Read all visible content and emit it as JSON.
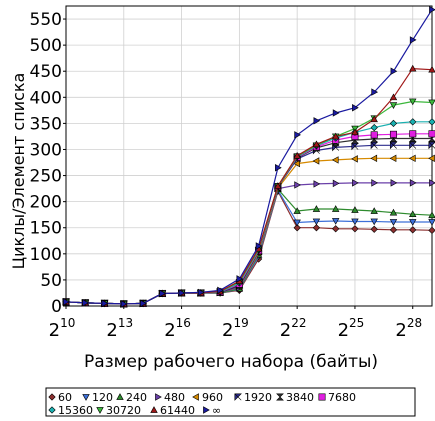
{
  "chart_data": {
    "type": "line",
    "xlabel": "Размер рабочего набора (байты)",
    "ylabel": "Циклы/Элемент списка",
    "x_log2": [
      10,
      11,
      12,
      13,
      14,
      15,
      16,
      17,
      18,
      19,
      20,
      21,
      22,
      23,
      24,
      25,
      26,
      27,
      28,
      29
    ],
    "xlim_log2": [
      10,
      29
    ],
    "ylim": [
      0,
      575
    ],
    "x_ticks": [
      {
        "pow": 10,
        "base": "2",
        "exp": "10"
      },
      {
        "pow": 13,
        "base": "2",
        "exp": "13"
      },
      {
        "pow": 16,
        "base": "2",
        "exp": "16"
      },
      {
        "pow": 19,
        "base": "2",
        "exp": "19"
      },
      {
        "pow": 22,
        "base": "2",
        "exp": "22"
      },
      {
        "pow": 25,
        "base": "2",
        "exp": "25"
      },
      {
        "pow": 28,
        "base": "2",
        "exp": "28"
      }
    ],
    "y_ticks": [
      0,
      50,
      100,
      150,
      200,
      250,
      300,
      350,
      400,
      450,
      500,
      550
    ],
    "grid": true,
    "legend_placement": "bottom",
    "series": [
      {
        "name": "60",
        "color": "#8b2f2f",
        "marker": "diamond",
        "values": [
          8,
          6,
          5,
          4,
          5,
          24,
          25,
          25,
          25,
          30,
          90,
          220,
          150,
          150,
          148,
          148,
          147,
          146,
          146,
          145
        ]
      },
      {
        "name": "120",
        "color": "#3c6fd8",
        "marker": "tri-down",
        "values": [
          8,
          6,
          5,
          4,
          5,
          24,
          25,
          25,
          25,
          32,
          95,
          222,
          160,
          162,
          163,
          162,
          162,
          161,
          161,
          161
        ]
      },
      {
        "name": "240",
        "color": "#2e8b2e",
        "marker": "tri-up",
        "values": [
          8,
          6,
          5,
          4,
          5,
          24,
          25,
          25,
          25,
          33,
          98,
          224,
          182,
          186,
          186,
          184,
          182,
          179,
          176,
          174
        ]
      },
      {
        "name": "480",
        "color": "#6a3fa8",
        "marker": "tri-right",
        "values": [
          8,
          6,
          5,
          4,
          5,
          24,
          25,
          25,
          26,
          35,
          100,
          225,
          232,
          234,
          235,
          236,
          236,
          236,
          236,
          236
        ]
      },
      {
        "name": "960",
        "color": "#d68a00",
        "marker": "tri-left",
        "values": [
          8,
          6,
          5,
          4,
          5,
          24,
          25,
          25,
          26,
          37,
          102,
          226,
          273,
          278,
          280,
          282,
          283,
          283,
          283,
          283
        ]
      },
      {
        "name": "1920",
        "color": "#2c2c8c",
        "marker": "bowtie-h",
        "values": [
          8,
          6,
          5,
          4,
          5,
          24,
          25,
          25,
          26,
          38,
          104,
          228,
          282,
          298,
          304,
          306,
          308,
          308,
          308,
          308
        ]
      },
      {
        "name": "3840",
        "color": "#303030",
        "marker": "bowtie-v",
        "values": [
          8,
          6,
          5,
          4,
          5,
          24,
          25,
          25,
          27,
          40,
          105,
          228,
          284,
          303,
          313,
          318,
          320,
          321,
          321,
          321
        ]
      },
      {
        "name": "7680",
        "color": "#e01ee0",
        "marker": "square",
        "values": [
          8,
          6,
          5,
          4,
          5,
          24,
          25,
          25,
          27,
          42,
          106,
          229,
          285,
          305,
          318,
          325,
          328,
          329,
          330,
          330
        ]
      },
      {
        "name": "15360",
        "color": "#1ab0b0",
        "marker": "diamond",
        "values": [
          8,
          6,
          5,
          4,
          5,
          24,
          25,
          25,
          27,
          44,
          107,
          229,
          286,
          307,
          322,
          333,
          342,
          350,
          353,
          353
        ]
      },
      {
        "name": "30720",
        "color": "#3cb83c",
        "marker": "tri-down",
        "values": [
          8,
          6,
          5,
          4,
          5,
          24,
          25,
          25,
          28,
          46,
          108,
          230,
          287,
          308,
          325,
          340,
          360,
          385,
          392,
          390
        ]
      },
      {
        "name": "61440",
        "color": "#a01818",
        "marker": "tri-up",
        "values": [
          8,
          6,
          5,
          4,
          5,
          24,
          25,
          25,
          28,
          48,
          110,
          230,
          288,
          310,
          325,
          333,
          358,
          400,
          455,
          453
        ]
      },
      {
        "name": "∞",
        "color": "#1a1aa0",
        "marker": "tri-right",
        "values": [
          8,
          6,
          5,
          4,
          5,
          24,
          25,
          26,
          30,
          52,
          115,
          265,
          328,
          355,
          370,
          380,
          410,
          450,
          510,
          568
        ]
      }
    ]
  }
}
